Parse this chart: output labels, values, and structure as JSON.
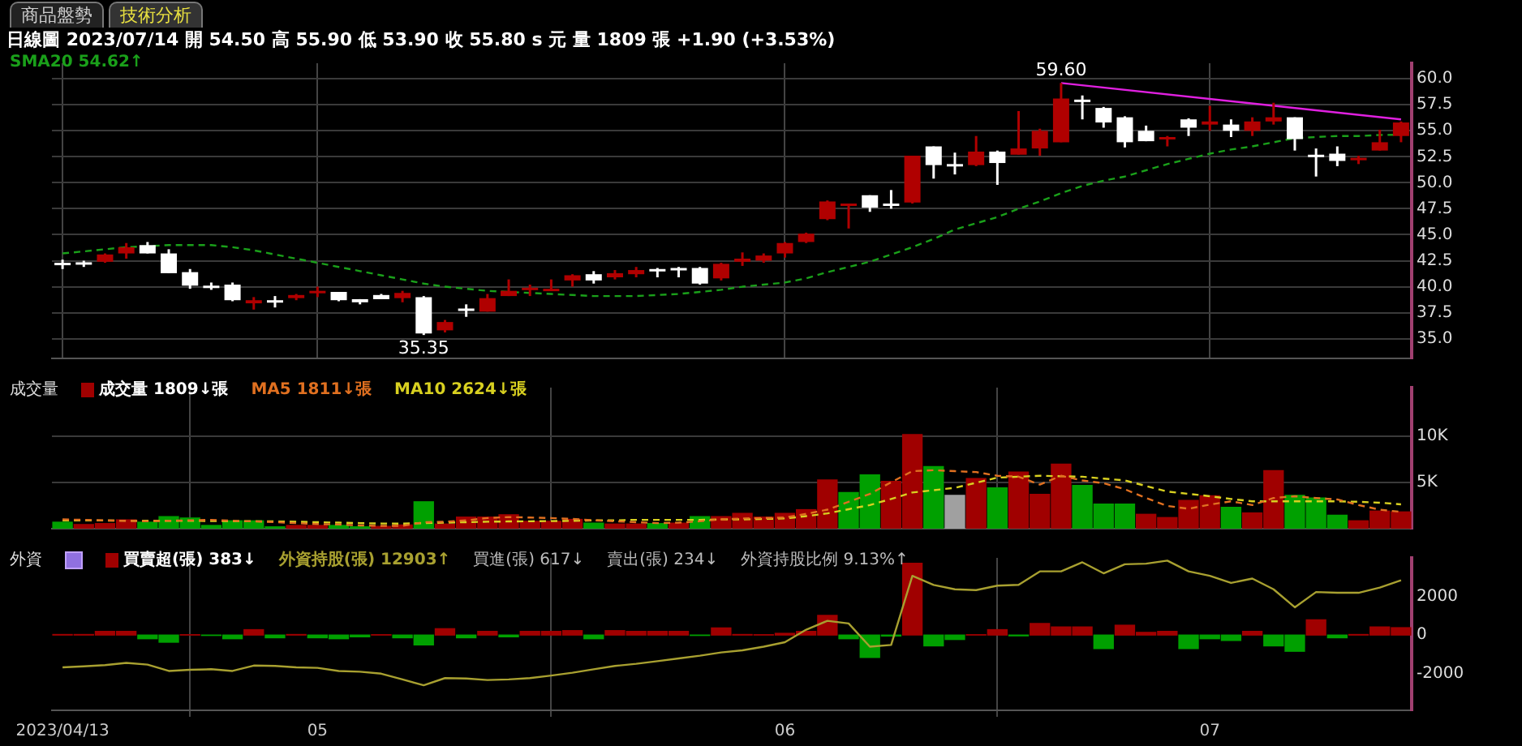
{
  "chart_data": [
    {
      "type": "candlestick",
      "subtitle": "日線圖  2023/07/14  開 54.50  高 55.90  低 53.90  收 55.80 s 元  量 1809 張  +1.90 (+3.53%)",
      "annotations": [
        "商品盤勢",
        "技術分析",
        {
          "text": "59.60",
          "y": 59.6
        },
        {
          "text": "35.35",
          "y": 35.35
        }
      ],
      "categories": [
        "2023/04/13",
        null,
        null,
        null,
        null,
        null,
        null,
        null,
        null,
        null,
        null,
        null,
        "05",
        null,
        null,
        null,
        null,
        null,
        null,
        null,
        null,
        null,
        null,
        null,
        null,
        null,
        null,
        null,
        null,
        null,
        null,
        null,
        null,
        null,
        "06",
        null,
        null,
        null,
        null,
        null,
        null,
        null,
        null,
        null,
        null,
        null,
        null,
        null,
        null,
        null,
        null,
        null,
        null,
        null,
        "07",
        null,
        null,
        null,
        null,
        null,
        null,
        null,
        null,
        null
      ],
      "ohlc": [
        [
          42.3,
          42.6,
          41.7,
          42.3
        ],
        [
          42.35,
          42.5,
          41.9,
          42.3
        ],
        [
          42.4,
          43.2,
          42.3,
          43.1
        ],
        [
          43.2,
          44.2,
          42.7,
          43.8
        ],
        [
          44.0,
          44.3,
          43.2,
          43.2
        ],
        [
          43.2,
          43.6,
          41.3,
          41.3
        ],
        [
          41.4,
          41.7,
          39.8,
          40.1
        ],
        [
          40.1,
          40.4,
          39.7,
          40.0
        ],
        [
          40.2,
          40.4,
          38.6,
          38.7
        ],
        [
          38.4,
          39.0,
          37.8,
          38.7
        ],
        [
          38.7,
          39.1,
          38.0,
          38.6
        ],
        [
          38.9,
          39.3,
          38.7,
          39.2
        ],
        [
          39.4,
          40.0,
          39.0,
          39.6
        ],
        [
          39.5,
          39.5,
          38.6,
          38.7
        ],
        [
          38.8,
          38.8,
          38.3,
          38.5
        ],
        [
          39.2,
          39.3,
          38.8,
          38.8
        ],
        [
          38.9,
          39.6,
          38.5,
          39.4
        ],
        [
          39.0,
          39.1,
          35.35,
          35.5
        ],
        [
          35.8,
          36.8,
          35.6,
          36.6
        ],
        [
          37.9,
          38.3,
          37.1,
          37.8
        ],
        [
          37.6,
          39.3,
          37.6,
          38.9
        ],
        [
          39.1,
          40.7,
          39.1,
          39.6
        ],
        [
          39.8,
          40.2,
          39.1,
          39.9
        ],
        [
          39.7,
          40.7,
          39.6,
          39.8
        ],
        [
          40.6,
          41.2,
          40.0,
          41.1
        ],
        [
          41.2,
          41.5,
          40.3,
          40.6
        ],
        [
          40.9,
          41.6,
          40.7,
          41.3
        ],
        [
          41.2,
          41.9,
          40.9,
          41.6
        ],
        [
          41.7,
          41.8,
          40.9,
          41.5
        ],
        [
          41.8,
          41.9,
          40.9,
          41.6
        ],
        [
          41.8,
          41.9,
          40.2,
          40.3
        ],
        [
          40.8,
          42.3,
          40.6,
          42.2
        ],
        [
          42.4,
          43.3,
          42.0,
          42.7
        ],
        [
          42.5,
          43.2,
          42.3,
          43.0
        ],
        [
          43.2,
          44.3,
          42.8,
          44.2
        ],
        [
          44.3,
          45.2,
          44.2,
          45.1
        ],
        [
          46.5,
          48.3,
          46.4,
          48.2
        ],
        [
          47.9,
          48.0,
          45.6,
          48.0
        ],
        [
          48.8,
          48.8,
          47.2,
          47.6
        ],
        [
          48.0,
          49.3,
          47.5,
          47.9
        ],
        [
          48.1,
          52.6,
          48.0,
          52.6
        ],
        [
          53.5,
          53.5,
          50.4,
          51.7
        ],
        [
          51.8,
          52.9,
          50.8,
          51.7
        ],
        [
          51.7,
          54.5,
          51.6,
          53.0
        ],
        [
          53.0,
          53.1,
          49.8,
          51.9
        ],
        [
          52.7,
          56.9,
          52.7,
          53.3
        ],
        [
          53.3,
          55.2,
          52.6,
          55.0
        ],
        [
          53.9,
          59.6,
          53.9,
          58.1
        ],
        [
          58.0,
          58.4,
          56.1,
          57.8
        ],
        [
          57.2,
          57.3,
          55.3,
          55.8
        ],
        [
          56.3,
          56.4,
          53.4,
          53.9
        ],
        [
          55.0,
          55.5,
          54.0,
          54.0
        ],
        [
          54.2,
          54.5,
          53.5,
          54.4
        ],
        [
          56.1,
          56.2,
          54.5,
          55.3
        ],
        [
          55.6,
          57.4,
          55.0,
          55.9
        ],
        [
          55.6,
          56.1,
          54.4,
          55.0
        ],
        [
          55.0,
          56.3,
          54.5,
          55.9
        ],
        [
          55.9,
          57.7,
          55.6,
          56.3
        ],
        [
          56.3,
          56.3,
          53.1,
          54.2
        ],
        [
          52.7,
          53.3,
          50.6,
          52.6
        ],
        [
          52.8,
          53.5,
          51.6,
          52.1
        ],
        [
          52.3,
          52.6,
          51.8,
          52.4
        ],
        [
          53.1,
          55.1,
          53.1,
          53.9
        ],
        [
          54.5,
          55.9,
          53.9,
          55.8
        ]
      ],
      "colors": [
        "#ffffff",
        "#ffffff",
        "#b00000",
        "#b00000",
        "#ffffff",
        "#ffffff",
        "#ffffff",
        "#ffffff",
        "#ffffff",
        "#b00000",
        "#ffffff",
        "#b00000",
        "#b00000",
        "#ffffff",
        "#ffffff",
        "#ffffff",
        "#b00000",
        "#ffffff",
        "#b00000",
        "#ffffff",
        "#b00000",
        "#b00000",
        "#b00000",
        "#b00000",
        "#b00000",
        "#ffffff",
        "#b00000",
        "#b00000",
        "#ffffff",
        "#ffffff",
        "#ffffff",
        "#b00000",
        "#b00000",
        "#b00000",
        "#b00000",
        "#b00000",
        "#b00000",
        "#b00000",
        "#ffffff",
        "#ffffff",
        "#b00000",
        "#ffffff",
        "#ffffff",
        "#b00000",
        "#ffffff",
        "#b00000",
        "#b00000",
        "#b00000",
        "#ffffff",
        "#ffffff",
        "#ffffff",
        "#ffffff",
        "#b00000",
        "#ffffff",
        "#b00000",
        "#ffffff",
        "#b00000",
        "#b00000",
        "#ffffff",
        "#ffffff",
        "#ffffff",
        "#b00000",
        "#b00000",
        "#b00000"
      ],
      "series": [
        {
          "type": "line",
          "name": "SMA20 54.62↑",
          "color": "#1aa01a",
          "line_style": "dashed",
          "values": [
            43.2,
            43.4,
            43.6,
            43.8,
            43.9,
            44.0,
            44.0,
            44.0,
            43.8,
            43.5,
            43.1,
            42.7,
            42.3,
            41.9,
            41.5,
            41.1,
            40.7,
            40.3,
            40.0,
            39.8,
            39.6,
            39.5,
            39.4,
            39.3,
            39.2,
            39.1,
            39.1,
            39.1,
            39.2,
            39.3,
            39.5,
            39.7,
            40.0,
            40.2,
            40.4,
            40.8,
            41.4,
            41.9,
            42.4,
            43.1,
            43.8,
            44.6,
            45.5,
            46.1,
            46.7,
            47.5,
            48.2,
            49.0,
            49.7,
            50.2,
            50.6,
            51.2,
            51.8,
            52.3,
            52.8,
            53.2,
            53.5,
            53.9,
            54.3,
            54.4,
            54.5,
            54.5,
            54.6,
            54.62
          ]
        },
        {
          "type": "line",
          "color": "#e020e0",
          "line_style": "solid",
          "values": [
            null,
            null,
            null,
            null,
            null,
            null,
            null,
            null,
            null,
            null,
            null,
            null,
            null,
            null,
            null,
            null,
            null,
            null,
            null,
            null,
            null,
            null,
            null,
            null,
            null,
            null,
            null,
            null,
            null,
            null,
            null,
            null,
            null,
            null,
            null,
            null,
            null,
            null,
            null,
            null,
            null,
            null,
            null,
            null,
            null,
            null,
            null,
            59.6,
            null,
            null,
            null,
            null,
            null,
            null,
            null,
            null,
            null,
            null,
            null,
            null,
            null,
            null,
            null,
            56.1
          ]
        }
      ],
      "ylim": [
        33.1,
        61.5
      ],
      "yticks": [
        {
          "value": 35,
          "label": "35.0"
        },
        {
          "value": 37.5,
          "label": "37.5"
        },
        {
          "value": 40,
          "label": "40.0"
        },
        {
          "value": 42.5,
          "label": "42.5"
        },
        {
          "value": 45,
          "label": "45.0"
        },
        {
          "value": 47.5,
          "label": "47.5"
        },
        {
          "value": 50,
          "label": "50.0"
        },
        {
          "value": 52.5,
          "label": "52.5"
        },
        {
          "value": 55,
          "label": "55.0"
        },
        {
          "value": 57.5,
          "label": "57.5"
        },
        {
          "value": 60,
          "label": "60.0"
        }
      ],
      "grid": true,
      "legend": "top left",
      "tick_labels": "y"
    },
    {
      "type": "bar",
      "title": "成交量",
      "categories": [
        "2023/04/13",
        null,
        null,
        null,
        null,
        null,
        null,
        null,
        null,
        null,
        null,
        null,
        "05",
        null,
        null,
        null,
        null,
        null,
        null,
        null,
        null,
        null,
        null,
        null,
        null,
        null,
        null,
        null,
        null,
        null,
        null,
        null,
        null,
        null,
        "06",
        null,
        null,
        null,
        null,
        null,
        null,
        null,
        null,
        null,
        null,
        null,
        null,
        null,
        null,
        null,
        null,
        null,
        null,
        null,
        "07",
        null,
        null,
        null,
        null,
        null,
        null,
        null,
        null,
        null
      ],
      "series": [
        {
          "type": "bar",
          "name": "成交量 1809↓張",
          "colors": [
            "#00a000",
            "#a00000",
            "#a00000",
            "#a00000",
            "#00a000",
            "#00a000",
            "#00a000",
            "#00a000",
            "#00a000",
            "#00a000",
            "#00a000",
            "#a00000",
            "#a00000",
            "#00a000",
            "#00a000",
            "#a00000",
            "#a00000",
            "#00a000",
            "#a00000",
            "#a00000",
            "#a00000",
            "#a00000",
            "#a00000",
            "#a00000",
            "#a00000",
            "#00a000",
            "#a00000",
            "#a00000",
            "#00a000",
            "#a00000",
            "#00a000",
            "#a00000",
            "#a00000",
            "#a00000",
            "#a00000",
            "#a00000",
            "#a00000",
            "#00a000",
            "#00a000",
            "#a00000",
            "#a00000",
            "#00a000",
            "#a0a0a0",
            "#a00000",
            "#00a000",
            "#a00000",
            "#a00000",
            "#a00000",
            "#00a000",
            "#00a000",
            "#00a000",
            "#a00000",
            "#a00000",
            "#a00000",
            "#a00000",
            "#00a000",
            "#a00000",
            "#a00000",
            "#00a000",
            "#00a000",
            "#00a000",
            "#a00000",
            "#a00000",
            "#a00000"
          ],
          "values": [
            700,
            450,
            550,
            950,
            700,
            1300,
            1150,
            350,
            850,
            850,
            200,
            350,
            350,
            350,
            200,
            250,
            400,
            2900,
            500,
            1250,
            1250,
            1500,
            800,
            800,
            1000,
            600,
            500,
            500,
            550,
            600,
            1300,
            1300,
            1650,
            1250,
            1650,
            2050,
            5250,
            3900,
            5800,
            5100,
            10150,
            6700,
            3600,
            5400,
            4400,
            6100,
            3700,
            6950,
            4650,
            2650,
            2650,
            1550,
            1200,
            3050,
            3550,
            2300,
            1700,
            6250,
            3600,
            3300,
            1450,
            850,
            1900,
            1809
          ]
        },
        {
          "type": "line",
          "name": "MA5 1811↓張",
          "color": "#e07020",
          "line_style": "dashed",
          "values": [
            1000,
            950,
            900,
            850,
            800,
            850,
            900,
            950,
            850,
            800,
            700,
            600,
            500,
            450,
            350,
            300,
            300,
            700,
            750,
            900,
            1150,
            1250,
            1200,
            1150,
            1050,
            900,
            800,
            700,
            600,
            650,
            800,
            1000,
            1100,
            1150,
            1200,
            1600,
            2050,
            2900,
            3750,
            5000,
            6200,
            6300,
            6200,
            6100,
            5700,
            5600,
            4750,
            5700,
            5200,
            4900,
            4250,
            3300,
            2450,
            2150,
            2600,
            2950,
            2550,
            3300,
            3500,
            3300,
            3150,
            2550,
            2050,
            1811
          ]
        },
        {
          "type": "line",
          "name": "MA10 2624↓張",
          "color": "#d8d020",
          "line_style": "dashed",
          "values": [
            900,
            900,
            880,
            860,
            850,
            850,
            850,
            830,
            800,
            800,
            780,
            750,
            700,
            650,
            600,
            560,
            550,
            600,
            650,
            700,
            750,
            780,
            800,
            820,
            850,
            900,
            900,
            950,
            950,
            950,
            950,
            1000,
            1000,
            1050,
            1100,
            1350,
            1650,
            2100,
            2550,
            3200,
            3900,
            4150,
            4400,
            4950,
            5500,
            5600,
            5700,
            5650,
            5600,
            5400,
            5200,
            4600,
            4000,
            3750,
            3500,
            3200,
            2950,
            2950,
            2950,
            2950,
            2950,
            2900,
            2800,
            2624
          ]
        }
      ],
      "ylim": [
        0,
        15200
      ],
      "yticks": [
        {
          "value": 5000,
          "label": "5K"
        },
        {
          "value": 10000,
          "label": "10K"
        }
      ],
      "grid": true,
      "legend": "top left",
      "tick_labels": "y"
    },
    {
      "type": "bar",
      "title": "外資",
      "annotations": [
        "買進(張) 617↓",
        "賣出(張) 234↓",
        "外資持股比例 9.13%↑"
      ],
      "categories": [
        "2023/04/13",
        null,
        null,
        null,
        null,
        null,
        null,
        null,
        null,
        null,
        null,
        null,
        "05",
        null,
        null,
        null,
        null,
        null,
        null,
        null,
        null,
        null,
        null,
        null,
        null,
        null,
        null,
        null,
        null,
        null,
        null,
        null,
        null,
        null,
        "06",
        null,
        null,
        null,
        null,
        null,
        null,
        null,
        null,
        null,
        null,
        null,
        null,
        null,
        null,
        null,
        null,
        null,
        null,
        null,
        "07",
        null,
        null,
        null,
        null,
        null,
        null,
        null,
        null,
        null
      ],
      "series": [
        {
          "type": "bar",
          "name": "買賣超(張) 383↓",
          "colors": [
            "#a00000",
            "#a00000",
            "#a00000",
            "#a00000",
            "#00a000",
            "#00a000",
            "#a00000",
            "#00a000",
            "#00a000",
            "#a00000",
            "#00a000",
            "#a00000",
            "#00a000",
            "#00a000",
            "#00a000",
            "#a00000",
            "#00a000",
            "#00a000",
            "#a00000",
            "#00a000",
            "#a00000",
            "#00a000",
            "#a00000",
            "#a00000",
            "#a00000",
            "#00a000",
            "#a00000",
            "#a00000",
            "#a00000",
            "#a00000",
            "#00a000",
            "#a00000",
            "#a00000",
            "#a00000",
            "#a00000",
            "#a00000",
            "#a00000",
            "#00a000",
            "#00a000",
            "#00a000",
            "#a00000",
            "#00a000",
            "#00a000",
            "#a00000",
            "#a00000",
            "#00a000",
            "#a00000",
            "#a00000",
            "#a00000",
            "#00a000",
            "#a00000",
            "#a00000",
            "#a00000",
            "#00a000",
            "#00a000",
            "#00a000",
            "#a00000",
            "#00a000",
            "#00a000",
            "#a00000",
            "#00a000",
            "#a00000",
            "#a00000",
            "#a00000"
          ],
          "values": [
            30,
            30,
            190,
            190,
            -190,
            -370,
            20,
            -20,
            -190,
            280,
            -140,
            30,
            -140,
            -190,
            -90,
            20,
            -140,
            -510,
            330,
            -140,
            190,
            -90,
            190,
            190,
            230,
            -190,
            230,
            190,
            190,
            190,
            -20,
            370,
            30,
            20,
            90,
            190,
            1020,
            -190,
            -1160,
            -50,
            3720,
            -560,
            -230,
            20,
            280,
            -40,
            600,
            420,
            420,
            -700,
            510,
            140,
            190,
            -700,
            -190,
            -280,
            190,
            -560,
            -840,
            790,
            -140,
            30,
            420,
            383
          ]
        },
        {
          "type": "line",
          "name": "外資持股(張) 12903↑",
          "color": "#a8a030",
          "line_style": "solid",
          "values": [
            -1670,
            -1620,
            -1560,
            -1440,
            -1530,
            -1860,
            -1800,
            -1770,
            -1860,
            -1580,
            -1600,
            -1670,
            -1700,
            -1860,
            -1900,
            -2000,
            -2300,
            -2600,
            -2230,
            -2250,
            -2330,
            -2300,
            -2230,
            -2100,
            -1950,
            -1770,
            -1600,
            -1490,
            -1350,
            -1210,
            -1070,
            -900,
            -790,
            -600,
            -370,
            280,
            740,
            600,
            -600,
            -510,
            3070,
            2600,
            2370,
            2330,
            2560,
            2600,
            3300,
            3300,
            3770,
            3200,
            3670,
            3700,
            3860,
            3300,
            3070,
            2700,
            2930,
            2370,
            1440,
            2230,
            2190,
            2190,
            2460,
            2840
          ]
        }
      ],
      "ylim": [
        -3900,
        4000
      ],
      "yticks": [
        -2000,
        0,
        2000
      ],
      "grid": "x",
      "legend": "top left"
    }
  ]
}
